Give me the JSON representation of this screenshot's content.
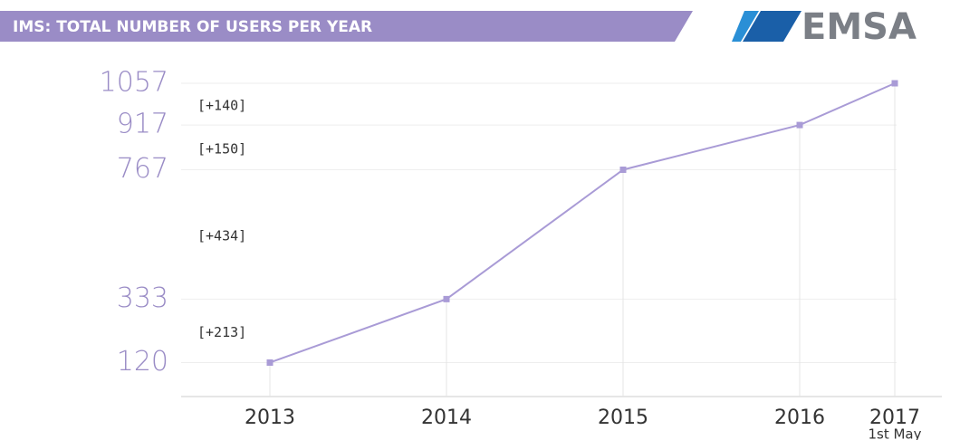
{
  "chart_data": {
    "type": "line",
    "title": "IMS: TOTAL NUMBER OF USERS PER YEAR",
    "logo": "EMSA",
    "categories": [
      "2013",
      "2014",
      "2015",
      "2016",
      "2017"
    ],
    "last_category_note": "1st May",
    "series": [
      {
        "name": "Users",
        "color": "#a99bd6",
        "values": [
          120,
          333,
          767,
          917,
          1057
        ]
      }
    ],
    "annotations": [
      "[+213]",
      "[+434]",
      "[+150]",
      "[+140]"
    ],
    "ylim": [
      0,
      1057
    ],
    "yticks": [
      120,
      333,
      767,
      917,
      1057
    ],
    "grid": true
  }
}
